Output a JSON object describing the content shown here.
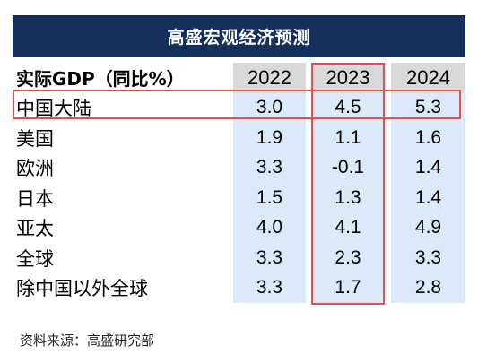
{
  "chart_data": {
    "type": "table",
    "title": "高盛宏观经济预测",
    "row_header": "实际GDP（同比%）",
    "columns": [
      "2022",
      "2023",
      "2024"
    ],
    "rows": [
      {
        "region": "中国大陆",
        "values": [
          "3.0",
          "4.5",
          "5.3"
        ]
      },
      {
        "region": "美国",
        "values": [
          "1.9",
          "1.1",
          "1.6"
        ]
      },
      {
        "region": "欧洲",
        "values": [
          "3.3",
          "-0.1",
          "1.4"
        ]
      },
      {
        "region": "日本",
        "values": [
          "1.5",
          "1.3",
          "1.4"
        ]
      },
      {
        "region": "亚太",
        "values": [
          "4.0",
          "4.1",
          "4.9"
        ]
      },
      {
        "region": "全球",
        "values": [
          "3.3",
          "2.3",
          "3.3"
        ]
      },
      {
        "region": "除中国以外全球",
        "values": [
          "3.3",
          "1.7",
          "2.8"
        ]
      }
    ],
    "highlights": {
      "row": "中国大陆",
      "column": "2023",
      "color": "#e24f4f"
    },
    "colors": {
      "title_bg": "#14305a",
      "header_cell": "#d9d9d9",
      "value_cell": "#dbeaf8"
    }
  },
  "source": "资料来源：高盛研究部"
}
